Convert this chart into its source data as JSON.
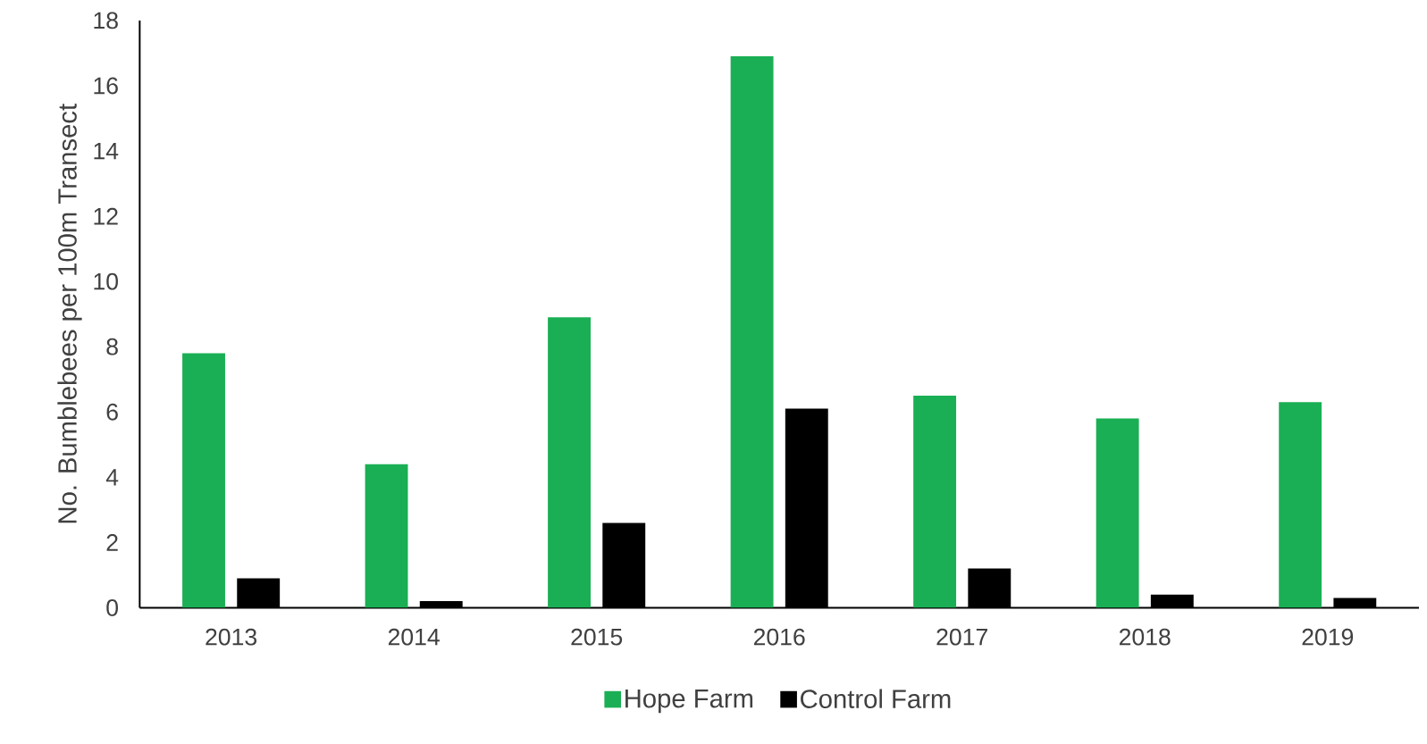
{
  "chart_data": {
    "type": "bar",
    "ylabel": "No. Bumblebees per 100m Transect",
    "categories": [
      "2013",
      "2014",
      "2015",
      "2016",
      "2017",
      "2018",
      "2019"
    ],
    "series": [
      {
        "name": "Hope Farm",
        "color": "#1aaf54",
        "values": [
          7.8,
          4.4,
          8.9,
          16.9,
          6.5,
          5.8,
          6.3
        ]
      },
      {
        "name": "Control Farm",
        "color": "#000000",
        "values": [
          0.9,
          0.2,
          2.6,
          6.1,
          1.2,
          0.4,
          0.3
        ]
      }
    ],
    "ylim": [
      0,
      18
    ],
    "yticks": [
      0,
      2,
      4,
      6,
      8,
      10,
      12,
      14,
      16,
      18
    ],
    "grid": false,
    "legend": "bottom"
  }
}
